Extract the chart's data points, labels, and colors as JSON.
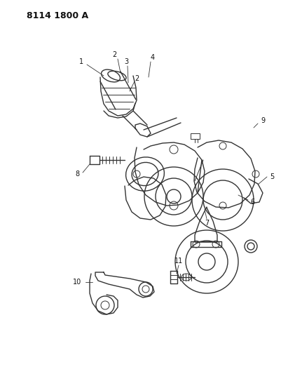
{
  "title": "8114 1800 A",
  "bg_color": "#ffffff",
  "line_color": "#333333",
  "label_color": "#111111",
  "header_fontsize": 9,
  "label_fontsize": 7
}
